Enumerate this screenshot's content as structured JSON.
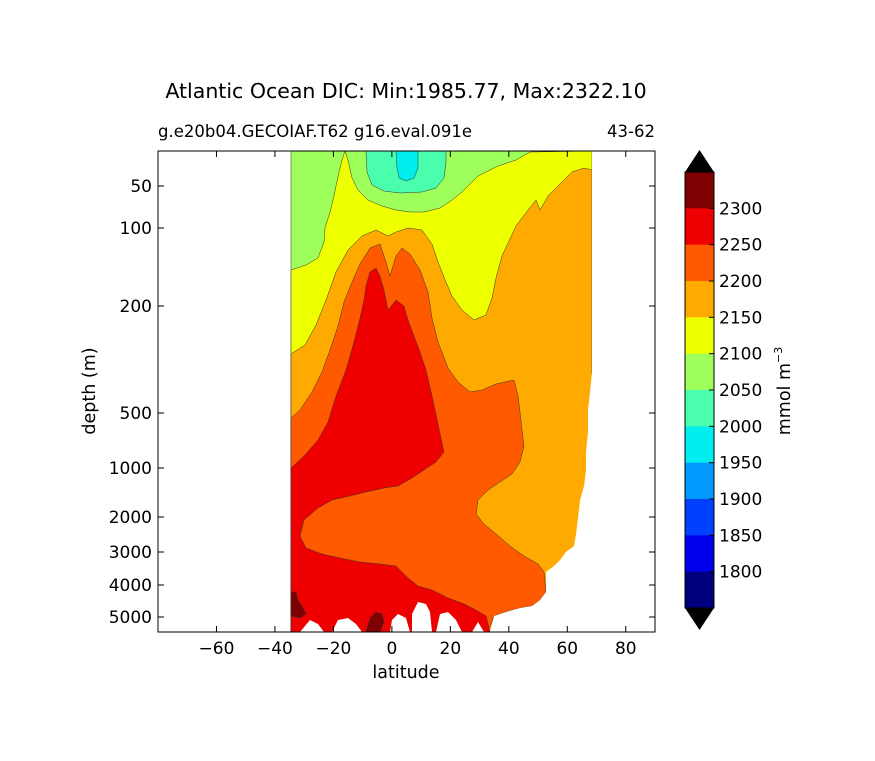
{
  "chart_data": {
    "type": "filled-contour",
    "title": "Atlantic Ocean DIC: Min:1985.77, Max:2322.10",
    "subtitle_left": "g.e20b04.GECOIAF.T62 g16.eval.091e",
    "subtitle_right": "43-62",
    "xlabel": "latitude",
    "ylabel": "depth (m)",
    "xlim": [
      -80,
      90
    ],
    "x_ticks": [
      {
        "value": -60,
        "label": "−60"
      },
      {
        "value": -40,
        "label": "−40"
      },
      {
        "value": -20,
        "label": "−20"
      },
      {
        "value": 0,
        "label": "0"
      },
      {
        "value": 20,
        "label": "20"
      },
      {
        "value": 40,
        "label": "40"
      },
      {
        "value": 60,
        "label": "60"
      },
      {
        "value": 80,
        "label": "80"
      }
    ],
    "y_ticks": [
      {
        "value": 50,
        "label": "50"
      },
      {
        "value": 100,
        "label": "100"
      },
      {
        "value": 200,
        "label": "200"
      },
      {
        "value": 500,
        "label": "500"
      },
      {
        "value": 1000,
        "label": "1000"
      },
      {
        "value": 2000,
        "label": "2000"
      },
      {
        "value": 3000,
        "label": "3000"
      },
      {
        "value": 4000,
        "label": "4000"
      },
      {
        "value": 5000,
        "label": "5000"
      }
    ],
    "data_range": {
      "min": 1985.77,
      "max": 2322.1
    },
    "colorbar": {
      "label": "mmol m",
      "label_exponent": "−3",
      "levels": [
        {
          "value": 1800,
          "label": "1800"
        },
        {
          "value": 1850,
          "label": "1850"
        },
        {
          "value": 1900,
          "label": "1900"
        },
        {
          "value": 1950,
          "label": "1950"
        },
        {
          "value": 2000,
          "label": "2000"
        },
        {
          "value": 2050,
          "label": "2050"
        },
        {
          "value": 2100,
          "label": "2100"
        },
        {
          "value": 2150,
          "label": "2150"
        },
        {
          "value": 2200,
          "label": "2200"
        },
        {
          "value": 2250,
          "label": "2250"
        },
        {
          "value": 2300,
          "label": "2300"
        }
      ],
      "bands": [
        {
          "range": "<1800",
          "color": "#00007f"
        },
        {
          "range": "1800-1850",
          "color": "#0000ee"
        },
        {
          "range": "1850-1900",
          "color": "#0040ff"
        },
        {
          "range": "1900-1950",
          "color": "#0099ff"
        },
        {
          "range": "1950-2000",
          "color": "#00eeee"
        },
        {
          "range": "2000-2050",
          "color": "#49ffad"
        },
        {
          "range": "2050-2100",
          "color": "#9fff5a"
        },
        {
          "range": "2100-2150",
          "color": "#eeff00"
        },
        {
          "range": "2150-2200",
          "color": "#ffaa00"
        },
        {
          "range": "2200-2250",
          "color": "#ff5a00"
        },
        {
          "range": "2250-2300",
          "color": "#ee0000"
        },
        {
          "range": ">2300",
          "color": "#7f0000"
        }
      ],
      "extend": "both",
      "under_color": "#000000",
      "over_color": "#000000"
    }
  }
}
